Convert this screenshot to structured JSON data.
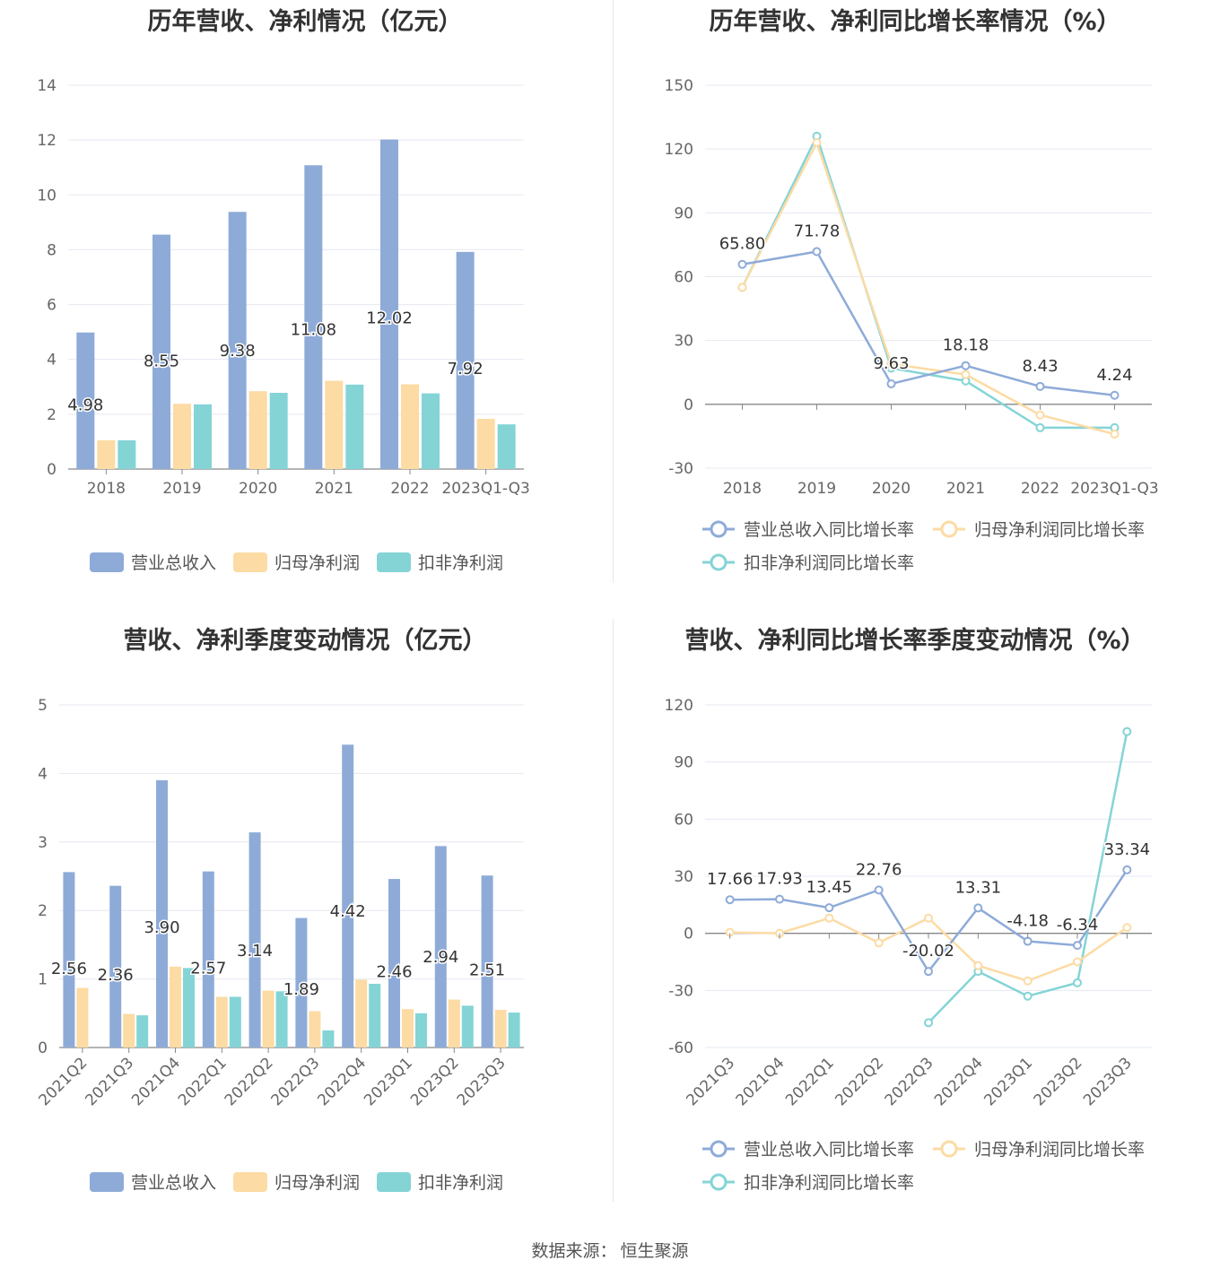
{
  "source": {
    "label": "数据来源：",
    "value": "恒生聚源"
  },
  "chart_data": [
    {
      "type": "bar",
      "title": "历年营收、净利情况（亿元）",
      "categories": [
        "2018",
        "2019",
        "2020",
        "2021",
        "2022",
        "2023Q1-Q3"
      ],
      "series": [
        {
          "name": "营业总收入",
          "values": [
            4.98,
            8.55,
            9.38,
            11.08,
            12.02,
            7.92
          ],
          "color": "#8eabd8"
        },
        {
          "name": "归母净利润",
          "values": [
            1.05,
            2.38,
            2.84,
            3.22,
            3.09,
            1.83
          ],
          "color": "#fcdba4"
        },
        {
          "name": "扣非净利润",
          "values": [
            1.05,
            2.36,
            2.78,
            3.08,
            2.76,
            1.63
          ],
          "color": "#84d4d6"
        }
      ],
      "value_labels": [
        "4.98",
        "8.55",
        "9.38",
        "11.08",
        "12.02",
        "7.92"
      ],
      "ylim": [
        0,
        14
      ],
      "yticks": [
        "0",
        "2",
        "4",
        "6",
        "8",
        "10",
        "12",
        "14"
      ],
      "legend": [
        "营业总收入",
        "归母净利润",
        "扣非净利润"
      ]
    },
    {
      "type": "line",
      "title": "历年营收、净利同比增长率情况（%）",
      "categories": [
        "2018",
        "2019",
        "2020",
        "2021",
        "2022",
        "2023Q1-Q3"
      ],
      "series": [
        {
          "name": "营业总收入同比增长率",
          "values": [
            65.8,
            71.78,
            9.63,
            18.18,
            8.43,
            4.24
          ],
          "color": "#8eabd8"
        },
        {
          "name": "归母净利润同比增长率",
          "values": [
            55,
            123,
            19,
            14,
            -5,
            -14
          ],
          "color": "#fcdba4"
        },
        {
          "name": "扣非净利润同比增长率",
          "values": [
            55,
            126,
            17,
            11,
            -11,
            -11
          ],
          "color": "#84d4d6"
        }
      ],
      "value_labels": [
        "65.80",
        "71.78",
        "9.63",
        "18.18",
        "8.43",
        "4.24"
      ],
      "ylim": [
        -30,
        150
      ],
      "yticks": [
        "-30",
        "0",
        "30",
        "60",
        "90",
        "120",
        "150"
      ],
      "legend": [
        "营业总收入同比增长率",
        "归母净利润同比增长率",
        "扣非净利润同比增长率"
      ]
    },
    {
      "type": "bar",
      "title": "营收、净利季度变动情况（亿元）",
      "categories": [
        "2021Q2",
        "2021Q3",
        "2021Q4",
        "2022Q1",
        "2022Q2",
        "2022Q3",
        "2022Q4",
        "2023Q1",
        "2023Q2",
        "2023Q3"
      ],
      "series": [
        {
          "name": "营业总收入",
          "values": [
            2.56,
            2.36,
            3.9,
            2.57,
            3.14,
            1.89,
            4.42,
            2.46,
            2.94,
            2.51
          ],
          "color": "#8eabd8"
        },
        {
          "name": "归母净利润",
          "values": [
            0.87,
            0.49,
            1.18,
            0.74,
            0.83,
            0.53,
            0.99,
            0.56,
            0.7,
            0.55
          ],
          "color": "#fcdba4"
        },
        {
          "name": "扣非净利润",
          "values": [
            null,
            0.47,
            1.16,
            0.74,
            0.82,
            0.25,
            0.93,
            0.5,
            0.61,
            0.51
          ],
          "color": "#84d4d6"
        }
      ],
      "value_labels": [
        "2.56",
        "2.36",
        "3.90",
        "2.57",
        "3.14",
        "1.89",
        "4.42",
        "2.46",
        "2.94",
        "2.51"
      ],
      "ylim": [
        0,
        5
      ],
      "yticks": [
        "0",
        "1",
        "2",
        "3",
        "4",
        "5"
      ],
      "legend": [
        "营业总收入",
        "归母净利润",
        "扣非净利润"
      ]
    },
    {
      "type": "line",
      "title": "营收、净利同比增长率季度变动情况（%）",
      "categories": [
        "2021Q3",
        "2021Q4",
        "2022Q1",
        "2022Q2",
        "2022Q3",
        "2022Q4",
        "2023Q1",
        "2023Q2",
        "2023Q3"
      ],
      "series": [
        {
          "name": "营业总收入同比增长率",
          "values": [
            17.66,
            17.93,
            13.45,
            22.76,
            -20.02,
            13.31,
            -4.18,
            -6.34,
            33.34
          ],
          "color": "#8eabd8"
        },
        {
          "name": "归母净利润同比增长率",
          "values": [
            0.5,
            0,
            8,
            -5,
            8,
            -17,
            -25,
            -15,
            3
          ],
          "color": "#fcdba4"
        },
        {
          "name": "扣非净利润同比增长率",
          "values": [
            null,
            null,
            null,
            null,
            -47,
            -20,
            -33,
            -26,
            106
          ],
          "color": "#84d4d6"
        }
      ],
      "value_labels": [
        "17.66",
        "17.93",
        "13.45",
        "22.76",
        "-20.02",
        "13.31",
        "-4.18",
        "-6.34",
        "33.34"
      ],
      "ylim": [
        -60,
        120
      ],
      "yticks": [
        "-60",
        "-30",
        "0",
        "30",
        "60",
        "90",
        "120"
      ],
      "legend": [
        "营业总收入同比增长率",
        "归母净利润同比增长率",
        "扣非净利润同比增长率"
      ]
    }
  ]
}
